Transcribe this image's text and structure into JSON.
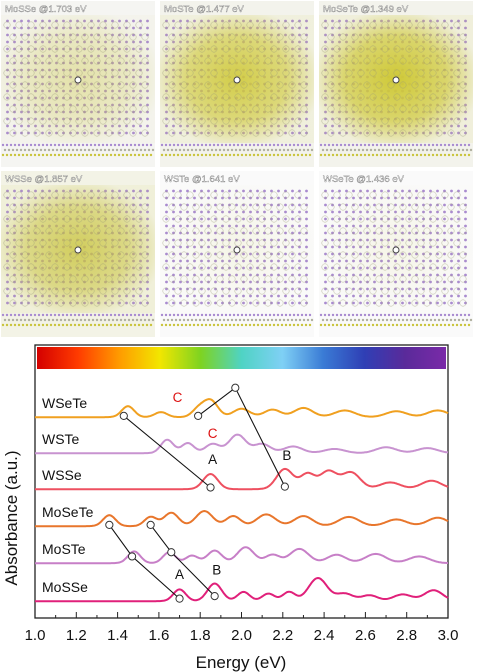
{
  "structure_panels": [
    {
      "label": "MoSSe @1.703 eV",
      "background_color": "#f5f5f2",
      "density_color": "#c9c43c",
      "density_level": 0.35
    },
    {
      "label": "MoSTe @1.477 eV",
      "background_color": "#f3f3ec",
      "density_color": "#cfc938",
      "density_level": 0.85
    },
    {
      "label": "MoSeTe @1.349 eV",
      "background_color": "#f3f3ec",
      "density_color": "#cfc938",
      "density_level": 0.95
    },
    {
      "label": "WSSe @1.857 eV",
      "background_color": "#f3f3e6",
      "density_color": "#c9c43c",
      "density_level": 0.75
    },
    {
      "label": "WSTe @1.641 eV",
      "background_color": "#fafafa",
      "density_color": "#c9c43c",
      "density_level": 0.05
    },
    {
      "label": "WSeTe @1.436 eV",
      "background_color": "#fafafa",
      "density_color": "#c9c43c",
      "density_level": 0.05
    }
  ],
  "colorbar": {
    "stops": [
      "#d40000",
      "#ff3b00",
      "#ff9a00",
      "#f2e600",
      "#7ed321",
      "#4fd3c4",
      "#7fd0f5",
      "#3a7bd5",
      "#2f3fb5",
      "#5a2a9a",
      "#7a2aa8"
    ]
  },
  "chart_data": {
    "type": "line",
    "xlabel": "Energy (eV)",
    "ylabel": "Absorbance (a.u.)",
    "xlim": [
      1.0,
      3.0
    ],
    "xticks": [
      "1.0",
      "1.2",
      "1.4",
      "1.6",
      "1.8",
      "2.0",
      "2.2",
      "2.4",
      "2.6",
      "2.8",
      "3.0"
    ],
    "series": [
      {
        "name": "MoSSe",
        "color": "#e0207a",
        "baseline": 5,
        "peaks": [
          [
            1.7,
            0.28,
            0.03
          ],
          [
            1.87,
            0.42,
            0.035
          ],
          [
            2.01,
            0.22,
            0.03
          ],
          [
            2.13,
            0.18,
            0.03
          ],
          [
            2.23,
            0.22,
            0.03
          ],
          [
            2.37,
            0.55,
            0.045
          ],
          [
            2.5,
            0.18,
            0.04
          ],
          [
            2.62,
            0.14,
            0.04
          ],
          [
            2.78,
            0.16,
            0.045
          ],
          [
            2.93,
            0.26,
            0.045
          ]
        ]
      },
      {
        "name": "MoSTe",
        "color": "#c77fc7",
        "baseline": 4,
        "peaks": [
          [
            1.48,
            0.28,
            0.03
          ],
          [
            1.65,
            0.26,
            0.03
          ],
          [
            1.76,
            0.18,
            0.03
          ],
          [
            1.87,
            0.3,
            0.035
          ],
          [
            2.02,
            0.38,
            0.04
          ],
          [
            2.15,
            0.2,
            0.035
          ],
          [
            2.28,
            0.34,
            0.045
          ],
          [
            2.46,
            0.2,
            0.045
          ],
          [
            2.65,
            0.22,
            0.05
          ],
          [
            2.86,
            0.16,
            0.05
          ]
        ]
      },
      {
        "name": "MoSeTe",
        "color": "#e8762c",
        "baseline": 3,
        "peaks": [
          [
            1.36,
            0.26,
            0.03
          ],
          [
            1.56,
            0.22,
            0.03
          ],
          [
            1.66,
            0.32,
            0.035
          ],
          [
            1.82,
            0.36,
            0.04
          ],
          [
            1.96,
            0.24,
            0.035
          ],
          [
            2.12,
            0.28,
            0.045
          ],
          [
            2.3,
            0.24,
            0.045
          ],
          [
            2.52,
            0.22,
            0.05
          ],
          [
            2.75,
            0.16,
            0.05
          ],
          [
            2.95,
            0.2,
            0.05
          ]
        ]
      },
      {
        "name": "WSSe",
        "color": "#ee5060",
        "baseline": 2,
        "peaks": [
          [
            1.85,
            0.36,
            0.035
          ],
          [
            2.21,
            0.48,
            0.04
          ],
          [
            2.32,
            0.36,
            0.035
          ],
          [
            2.42,
            0.42,
            0.04
          ],
          [
            2.53,
            0.4,
            0.045
          ],
          [
            2.72,
            0.16,
            0.05
          ],
          [
            2.92,
            0.2,
            0.05
          ]
        ]
      },
      {
        "name": "WSTe",
        "color": "#c893d0",
        "baseline": 1,
        "peaks": [
          [
            1.64,
            0.32,
            0.03
          ],
          [
            1.74,
            0.24,
            0.03
          ],
          [
            1.86,
            0.22,
            0.035
          ],
          [
            1.98,
            0.44,
            0.04
          ],
          [
            2.1,
            0.22,
            0.04
          ],
          [
            2.25,
            0.16,
            0.045
          ],
          [
            2.45,
            0.1,
            0.05
          ],
          [
            2.7,
            0.14,
            0.05
          ],
          [
            2.9,
            0.12,
            0.05
          ]
        ]
      },
      {
        "name": "WSeTe",
        "color": "#f0a020",
        "baseline": 0,
        "peaks": [
          [
            1.45,
            0.26,
            0.03
          ],
          [
            1.61,
            0.12,
            0.03
          ],
          [
            1.79,
            0.18,
            0.03
          ],
          [
            1.85,
            0.4,
            0.035
          ],
          [
            2.0,
            0.2,
            0.04
          ],
          [
            2.15,
            0.18,
            0.04
          ],
          [
            2.3,
            0.22,
            0.045
          ],
          [
            2.5,
            0.16,
            0.05
          ],
          [
            2.75,
            0.14,
            0.05
          ],
          [
            2.95,
            0.16,
            0.05
          ]
        ]
      }
    ],
    "annotations": [
      {
        "text": "A",
        "x": 1.7,
        "y": 5.55,
        "color": "#111111"
      },
      {
        "text": "B",
        "x": 1.88,
        "y": 5.65,
        "color": "#111111"
      },
      {
        "text": "A",
        "x": 1.86,
        "y": 2.62,
        "color": "#111111"
      },
      {
        "text": "B",
        "x": 2.22,
        "y": 2.72,
        "color": "#111111"
      },
      {
        "text": "C",
        "x": 1.86,
        "y": 1.38,
        "color": "#dd1111"
      },
      {
        "text": "C",
        "x": 1.69,
        "y": 0.38,
        "color": "#dd1111"
      }
    ],
    "connectors": [
      [
        [
          1.7,
          5.08
        ],
        [
          1.47,
          4.18
        ],
        [
          1.36,
          3.05
        ]
      ],
      [
        [
          1.87,
          5.14
        ],
        [
          1.66,
          4.28
        ],
        [
          1.56,
          3.05
        ]
      ],
      [
        [
          1.85,
          2.06
        ],
        [
          1.43,
          0.05
        ]
      ],
      [
        [
          2.21,
          2.08
        ],
        [
          1.97,
          0.72
        ],
        [
          1.79,
          0.05
        ]
      ]
    ]
  }
}
